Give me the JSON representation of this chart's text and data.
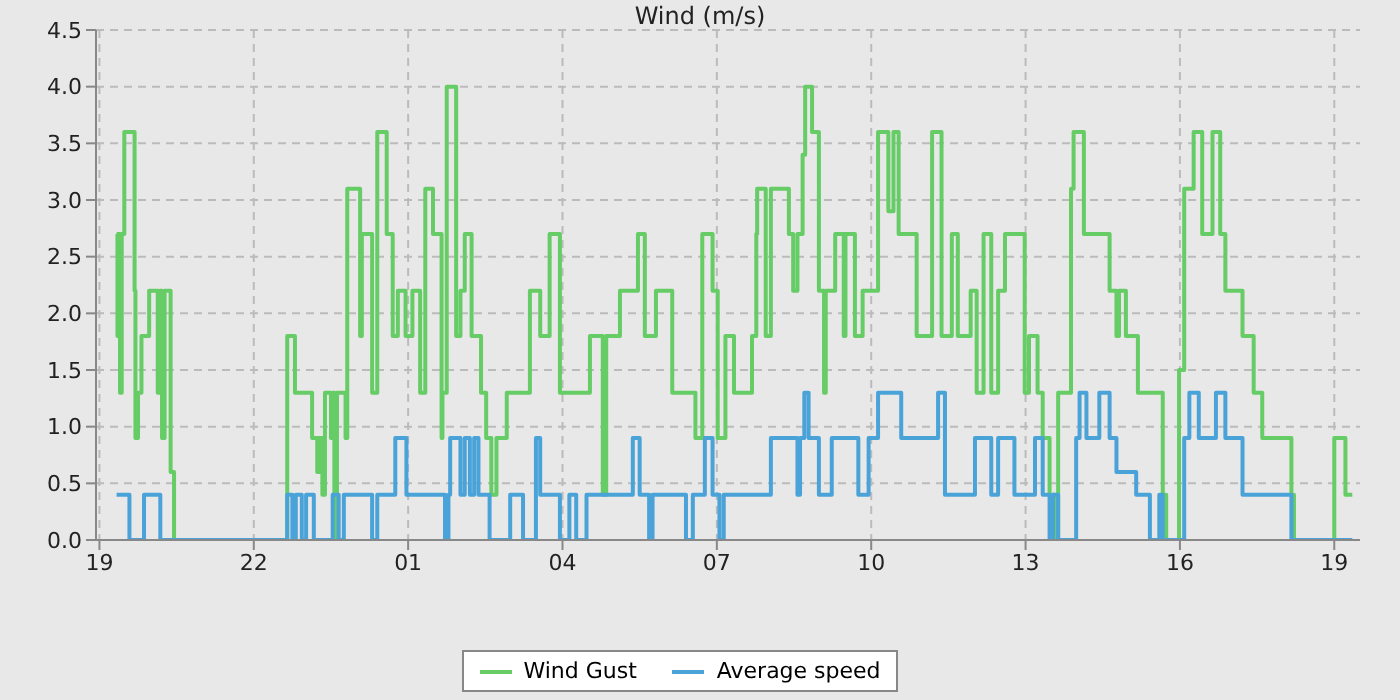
{
  "chart_data": {
    "type": "step",
    "title": "Wind (m/s)",
    "xlim": [
      "--01-01T18:56",
      "--01-02T19:30"
    ],
    "xticks": [
      {
        "value": "--01-01T19:00",
        "label": "19"
      },
      {
        "value": "--01-01T22:00",
        "label": "22"
      },
      {
        "value": "--01-02T01:00",
        "label": "01"
      },
      {
        "value": "--01-02T04:00",
        "label": "04"
      },
      {
        "value": "--01-02T07:00",
        "label": "07"
      },
      {
        "value": "--01-02T10:00",
        "label": "10"
      },
      {
        "value": "--01-02T13:00",
        "label": "13"
      },
      {
        "value": "--01-02T16:00",
        "label": "16"
      },
      {
        "value": "--01-02T19:00",
        "label": "19"
      }
    ],
    "ylim": [
      0,
      4.5
    ],
    "yticks": [
      {
        "value": 0,
        "label": "0.0"
      },
      {
        "value": 0.5,
        "label": "0.5"
      },
      {
        "value": 1,
        "label": "1.0"
      },
      {
        "value": 1.5,
        "label": "1.5"
      },
      {
        "value": 2,
        "label": "2.0"
      },
      {
        "value": 2.5,
        "label": "2.5"
      },
      {
        "value": 3,
        "label": "3.0"
      },
      {
        "value": 3.5,
        "label": "3.5"
      },
      {
        "value": 4,
        "label": "4.0"
      },
      {
        "value": 4.5,
        "label": "4.5"
      }
    ],
    "grid": true,
    "legend": "bottom",
    "marker": "none",
    "series": [
      {
        "name": "Wind Gust",
        "color": "#66cc66",
        "x": [
          "--01-01T19:20",
          "--01-01T19:21",
          "--01-01T19:22",
          "--01-01T19:24",
          "--01-01T19:26",
          "--01-01T19:29",
          "--01-01T19:41",
          "--01-01T19:42",
          "--01-01T19:45",
          "--01-01T19:49",
          "--01-01T19:58",
          "--01-01T20:08",
          "--01-01T20:10",
          "--01-01T20:13",
          "--01-01T20:16",
          "--01-01T20:23",
          "--01-01T20:27",
          "--01-01T22:39",
          "--01-01T22:48",
          "--01-01T23:08",
          "--01-01T23:14",
          "--01-01T23:16",
          "--01-01T23:20",
          "--01-01T23:23",
          "--01-01T23:30",
          "--01-01T23:32",
          "--01-01T23:34",
          "--01-01T23:37",
          "--01-01T23:47",
          "--01-01T23:49",
          "--01-02T00:04",
          "--01-02T00:06",
          "--01-02T00:18",
          "--01-02T00:24",
          "--01-02T00:35",
          "--01-02T00:42",
          "--01-02T00:48",
          "--01-02T00:57",
          "--01-02T01:05",
          "--01-02T01:14",
          "--01-02T01:20",
          "--01-02T01:29",
          "--01-02T01:39",
          "--01-02T01:40",
          "--01-02T01:45",
          "--01-02T01:56",
          "--01-02T02:01",
          "--01-02T02:06",
          "--01-02T02:14",
          "--01-02T02:25",
          "--01-02T02:31",
          "--01-02T02:37",
          "--01-02T02:43",
          "--01-02T02:55",
          "--01-02T03:22",
          "--01-02T03:34",
          "--01-02T03:45",
          "--01-02T03:57",
          "--01-02T04:32",
          "--01-02T04:47",
          "--01-02T04:51",
          "--01-02T05:07",
          "--01-02T05:28",
          "--01-02T05:36",
          "--01-02T05:49",
          "--01-02T06:08",
          "--01-02T06:35",
          "--01-02T06:43",
          "--01-02T06:55",
          "--01-02T07:01",
          "--01-02T07:10",
          "--01-02T07:20",
          "--01-02T07:41",
          "--01-02T07:46",
          "--01-02T07:47",
          "--01-02T07:57",
          "--01-02T08:03",
          "--01-02T08:24",
          "--01-02T08:29",
          "--01-02T08:34",
          "--01-02T08:40",
          "--01-02T08:43",
          "--01-02T08:51",
          "--01-02T08:59",
          "--01-02T09:05",
          "--01-02T09:07",
          "--01-02T09:18",
          "--01-02T09:28",
          "--01-02T09:30",
          "--01-02T09:41",
          "--01-02T09:50",
          "--01-02T10:08",
          "--01-02T10:20",
          "--01-02T10:26",
          "--01-02T10:32",
          "--01-02T10:53",
          "--01-02T11:11",
          "--01-02T11:22",
          "--01-02T11:34",
          "--01-02T11:41",
          "--01-02T11:56",
          "--01-02T12:03",
          "--01-02T12:11",
          "--01-02T12:20",
          "--01-02T12:28",
          "--01-02T12:36",
          "--01-02T12:59",
          "--01-02T13:04",
          "--01-02T13:14",
          "--01-02T13:20",
          "--01-02T13:28",
          "--01-02T13:34",
          "--01-02T13:38",
          "--01-02T13:53",
          "--01-02T13:56",
          "--01-02T14:08",
          "--01-02T14:13",
          "--01-02T14:38",
          "--01-02T14:46",
          "--01-02T14:49",
          "--01-02T14:57",
          "--01-02T15:11",
          "--01-02T15:40",
          "--01-02T15:44",
          "--01-02T15:59",
          "--01-02T16:05",
          "--01-02T16:16",
          "--01-02T16:26",
          "--01-02T16:38",
          "--01-02T16:47",
          "--01-02T16:53",
          "--01-02T17:13",
          "--01-02T17:26",
          "--01-02T17:36",
          "--01-02T18:10",
          "--01-02T18:13",
          "--01-02T19:00",
          "--01-02T19:13",
          "--01-02T19:21"
        ],
        "values": [
          2.7,
          1.8,
          2.7,
          1.3,
          2.7,
          3.6,
          2.2,
          0.9,
          1.3,
          1.8,
          2.2,
          1.3,
          2.2,
          0.9,
          2.2,
          0.6,
          0,
          1.8,
          1.3,
          0.9,
          0.6,
          0.9,
          0.4,
          1.3,
          0.9,
          1.3,
          0,
          1.3,
          0.9,
          3.1,
          1.8,
          2.7,
          1.3,
          3.6,
          2.7,
          1.8,
          2.2,
          1.8,
          2.2,
          1.3,
          3.1,
          2.7,
          0.9,
          1.3,
          4.0,
          1.8,
          2.2,
          2.7,
          1.8,
          1.3,
          0.9,
          0.4,
          0.9,
          1.3,
          2.2,
          1.8,
          2.7,
          1.3,
          1.8,
          0.4,
          1.8,
          2.2,
          2.7,
          1.8,
          2.2,
          1.3,
          0.9,
          2.7,
          2.2,
          0.9,
          1.8,
          1.3,
          1.8,
          2.7,
          3.1,
          1.8,
          3.1,
          2.7,
          2.2,
          2.7,
          3.4,
          4.0,
          3.6,
          2.2,
          1.3,
          2.2,
          2.7,
          1.8,
          2.7,
          1.8,
          2.2,
          3.6,
          2.9,
          3.6,
          2.7,
          1.8,
          3.6,
          1.8,
          2.7,
          1.8,
          2.2,
          1.3,
          2.7,
          1.3,
          2.2,
          2.7,
          1.3,
          1.8,
          1.3,
          0.9,
          0.4,
          0,
          1.3,
          3.1,
          3.6,
          2.7,
          2.7,
          2.2,
          1.8,
          2.2,
          1.8,
          1.3,
          0.4,
          0,
          1.5,
          3.1,
          3.6,
          2.7,
          3.6,
          2.7,
          2.2,
          1.8,
          1.3,
          0.9,
          0.4,
          0,
          0.9,
          0.4,
          0.4
        ]
      },
      {
        "name": "Average speed",
        "color": "#4aa3d8",
        "x": [
          "--01-01T19:20",
          "--01-01T19:35",
          "--01-01T19:52",
          "--01-01T20:11",
          "--01-01T22:39",
          "--01-01T22:45",
          "--01-01T22:49",
          "--01-01T22:56",
          "--01-01T23:01",
          "--01-01T23:10",
          "--01-01T23:32",
          "--01-01T23:39",
          "--01-01T23:45",
          "--01-02T00:18",
          "--01-02T00:24",
          "--01-02T00:45",
          "--01-02T00:58",
          "--01-02T01:43",
          "--01-02T01:47",
          "--01-02T01:49",
          "--01-02T02:01",
          "--01-02T02:06",
          "--01-02T02:12",
          "--01-02T02:17",
          "--01-02T02:22",
          "--01-02T02:35",
          "--01-02T02:59",
          "--01-02T03:14",
          "--01-02T03:29",
          "--01-02T03:34",
          "--01-02T03:57",
          "--01-02T04:08",
          "--01-02T04:16",
          "--01-02T04:28",
          "--01-02T05:22",
          "--01-02T05:30",
          "--01-02T05:41",
          "--01-02T05:45",
          "--01-02T06:24",
          "--01-02T06:32",
          "--01-02T06:46",
          "--01-02T06:55",
          "--01-02T07:03",
          "--01-02T07:08",
          "--01-02T08:03",
          "--01-02T08:34",
          "--01-02T08:37",
          "--01-02T08:42",
          "--01-02T08:47",
          "--01-02T08:59",
          "--01-02T09:14",
          "--01-02T09:45",
          "--01-02T09:57",
          "--01-02T10:08",
          "--01-02T10:35",
          "--01-02T11:18",
          "--01-02T11:26",
          "--01-02T11:38",
          "--01-02T12:01",
          "--01-02T12:20",
          "--01-02T12:28",
          "--01-02T12:47",
          "--01-02T13:11",
          "--01-02T13:20",
          "--01-02T13:28",
          "--01-02T13:32",
          "--01-02T13:38",
          "--01-02T13:59",
          "--01-02T14:03",
          "--01-02T14:11",
          "--01-02T14:26",
          "--01-02T14:38",
          "--01-02T14:46",
          "--01-02T15:09",
          "--01-02T15:25",
          "--01-02T15:36",
          "--01-02T15:40",
          "--01-02T16:05",
          "--01-02T16:11",
          "--01-02T16:22",
          "--01-02T16:42",
          "--01-02T16:53",
          "--01-02T17:13",
          "--01-02T18:10",
          "--01-02T19:21"
        ],
        "values": [
          0.4,
          0,
          0.4,
          0,
          0.4,
          0,
          0.4,
          0,
          0.4,
          0,
          0.4,
          0,
          0.4,
          0,
          0.4,
          0.9,
          0.4,
          0,
          0.4,
          0.9,
          0.4,
          0.9,
          0.4,
          0.9,
          0.4,
          0,
          0.4,
          0,
          0.9,
          0.4,
          0,
          0.4,
          0,
          0.4,
          0.9,
          0.4,
          0,
          0.4,
          0,
          0.4,
          0.9,
          0.4,
          0,
          0.4,
          0.9,
          0.4,
          0.9,
          1.3,
          0.9,
          0.4,
          0.9,
          0.4,
          0.9,
          1.3,
          0.9,
          1.3,
          0.4,
          0.4,
          0.9,
          0.4,
          0.9,
          0.4,
          0.9,
          0.4,
          0,
          0.4,
          0,
          0.9,
          1.3,
          0.9,
          1.3,
          0.9,
          0.6,
          0.4,
          0,
          0.4,
          0,
          0.9,
          1.3,
          0.9,
          1.3,
          0.9,
          0.4,
          0,
          0
        ]
      }
    ]
  }
}
